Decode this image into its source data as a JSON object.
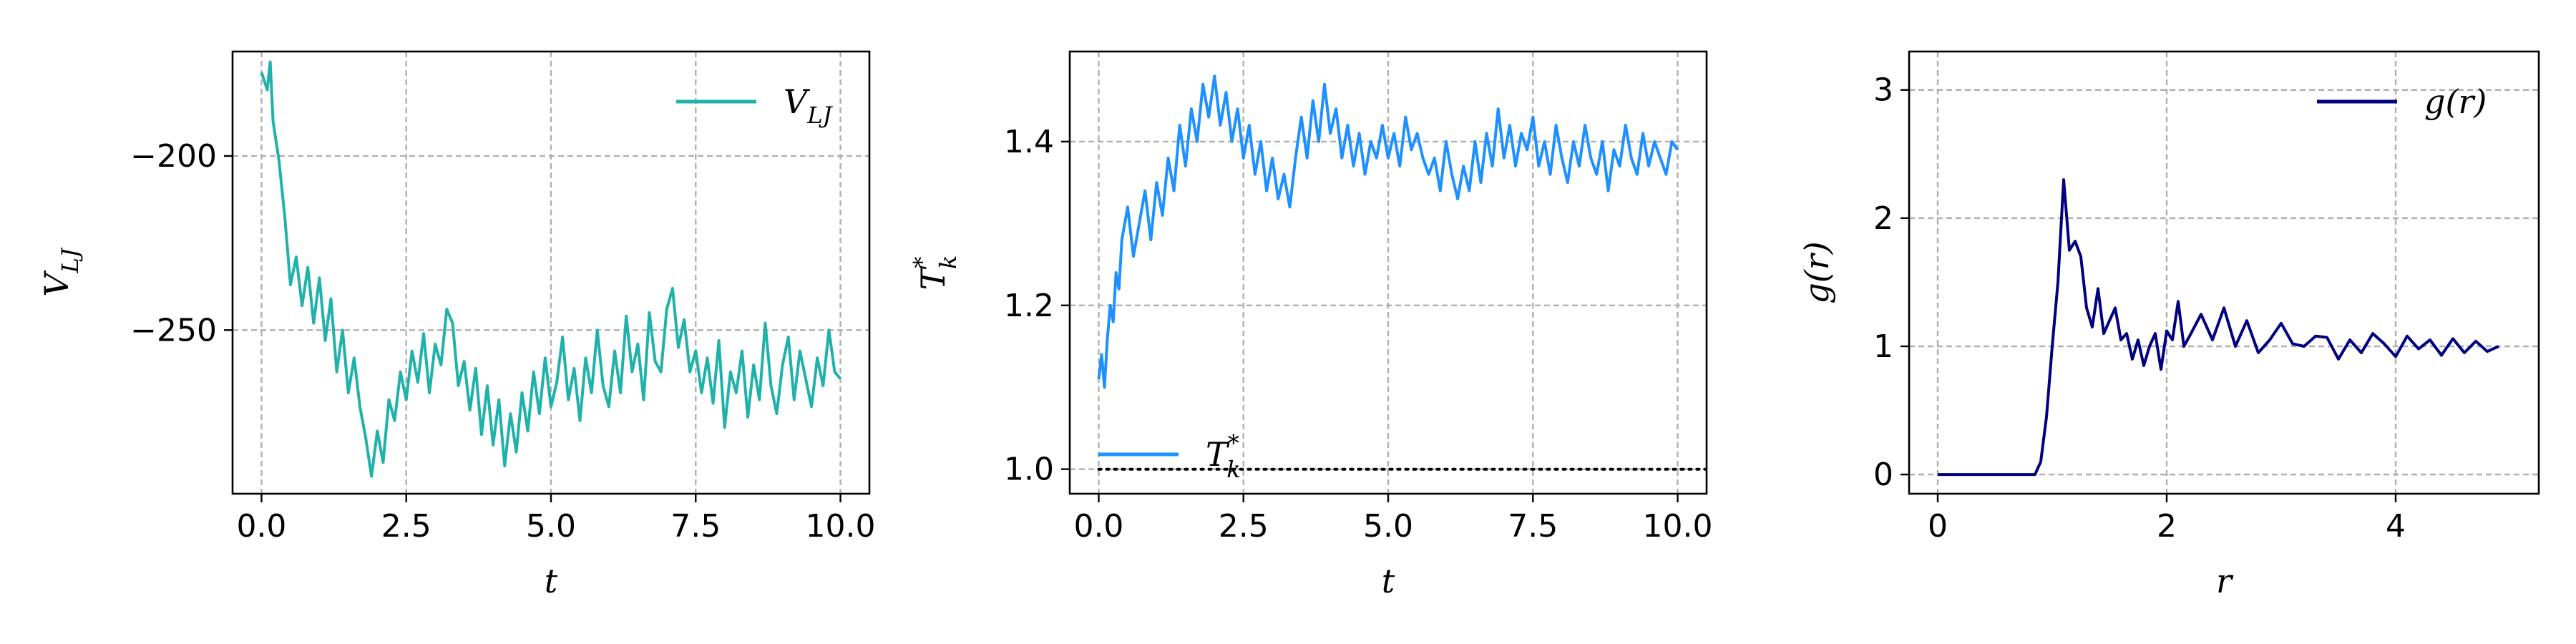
{
  "figure": {
    "chart_data": [
      {
        "type": "line",
        "xlabel": "t",
        "ylabel": "V_LJ",
        "xlim": [
          -0.5,
          10.5
        ],
        "ylim": [
          -297,
          -170
        ],
        "xticks": [
          0.0,
          2.5,
          5.0,
          7.5,
          10.0
        ],
        "xticklabels": [
          "0.0",
          "2.5",
          "5.0",
          "7.5",
          "10.0"
        ],
        "yticks": [
          -200,
          -250
        ],
        "yticklabels": [
          "−200",
          "−250"
        ],
        "grid": true,
        "legend_position": "top-right",
        "series": [
          {
            "name": "V_LJ",
            "color": "#20b2aa",
            "x": [
              0.0,
              0.1,
              0.15,
              0.2,
              0.3,
              0.4,
              0.5,
              0.6,
              0.7,
              0.8,
              0.9,
              1.0,
              1.1,
              1.2,
              1.3,
              1.4,
              1.5,
              1.6,
              1.7,
              1.8,
              1.9,
              2.0,
              2.1,
              2.2,
              2.3,
              2.4,
              2.5,
              2.6,
              2.7,
              2.8,
              2.9,
              3.0,
              3.1,
              3.2,
              3.3,
              3.4,
              3.5,
              3.6,
              3.7,
              3.8,
              3.9,
              4.0,
              4.1,
              4.2,
              4.3,
              4.4,
              4.5,
              4.6,
              4.7,
              4.8,
              4.9,
              5.0,
              5.1,
              5.2,
              5.3,
              5.4,
              5.5,
              5.6,
              5.7,
              5.8,
              5.9,
              6.0,
              6.1,
              6.2,
              6.3,
              6.4,
              6.5,
              6.6,
              6.7,
              6.8,
              6.9,
              7.0,
              7.1,
              7.2,
              7.3,
              7.4,
              7.5,
              7.6,
              7.7,
              7.8,
              7.9,
              8.0,
              8.1,
              8.2,
              8.3,
              8.4,
              8.5,
              8.6,
              8.7,
              8.8,
              8.9,
              9.0,
              9.1,
              9.2,
              9.3,
              9.4,
              9.5,
              9.6,
              9.7,
              9.8,
              9.9,
              10.0
            ],
            "y": [
              -176,
              -181,
              -173,
              -190,
              -201,
              -217,
              -237,
              -229,
              -243,
              -232,
              -248,
              -235,
              -253,
              -241,
              -262,
              -250,
              -268,
              -258,
              -272,
              -281,
              -292,
              -279,
              -288,
              -270,
              -276,
              -262,
              -270,
              -256,
              -265,
              -251,
              -268,
              -254,
              -260,
              -244,
              -248,
              -266,
              -259,
              -273,
              -261,
              -280,
              -266,
              -283,
              -270,
              -289,
              -274,
              -285,
              -268,
              -279,
              -262,
              -274,
              -258,
              -272,
              -265,
              -252,
              -270,
              -261,
              -276,
              -258,
              -268,
              -250,
              -266,
              -272,
              -256,
              -268,
              -246,
              -262,
              -254,
              -270,
              -245,
              -259,
              -262,
              -244,
              -238,
              -255,
              -247,
              -262,
              -256,
              -268,
              -258,
              -271,
              -253,
              -278,
              -262,
              -268,
              -256,
              -275,
              -260,
              -270,
              -248,
              -266,
              -274,
              -260,
              -252,
              -270,
              -256,
              -264,
              -272,
              -258,
              -266,
              -250,
              -262,
              -264
            ]
          }
        ]
      },
      {
        "type": "line",
        "xlabel": "t",
        "ylabel": "T*_k",
        "xlim": [
          -0.5,
          10.5
        ],
        "ylim": [
          0.97,
          1.51
        ],
        "xticks": [
          0.0,
          2.5,
          5.0,
          7.5,
          10.0
        ],
        "xticklabels": [
          "0.0",
          "2.5",
          "5.0",
          "7.5",
          "10.0"
        ],
        "yticks": [
          1.0,
          1.2,
          1.4
        ],
        "yticklabels": [
          "1.0",
          "1.2",
          "1.4"
        ],
        "grid": true,
        "legend_position": "bottom-left",
        "series": [
          {
            "name": "T*_k",
            "color": "#1e90ff",
            "x": [
              0.0,
              0.05,
              0.1,
              0.15,
              0.2,
              0.25,
              0.3,
              0.35,
              0.4,
              0.5,
              0.6,
              0.7,
              0.8,
              0.9,
              1.0,
              1.1,
              1.2,
              1.3,
              1.4,
              1.5,
              1.6,
              1.7,
              1.8,
              1.9,
              2.0,
              2.1,
              2.2,
              2.3,
              2.4,
              2.5,
              2.6,
              2.7,
              2.8,
              2.9,
              3.0,
              3.1,
              3.2,
              3.3,
              3.4,
              3.5,
              3.6,
              3.7,
              3.8,
              3.9,
              4.0,
              4.1,
              4.2,
              4.3,
              4.4,
              4.5,
              4.6,
              4.7,
              4.8,
              4.9,
              5.0,
              5.1,
              5.2,
              5.3,
              5.4,
              5.5,
              5.6,
              5.7,
              5.8,
              5.9,
              6.0,
              6.1,
              6.2,
              6.3,
              6.4,
              6.5,
              6.6,
              6.7,
              6.8,
              6.9,
              7.0,
              7.1,
              7.2,
              7.3,
              7.4,
              7.5,
              7.6,
              7.7,
              7.8,
              7.9,
              8.0,
              8.1,
              8.2,
              8.3,
              8.4,
              8.5,
              8.6,
              8.7,
              8.8,
              8.9,
              9.0,
              9.1,
              9.2,
              9.3,
              9.4,
              9.5,
              9.6,
              9.7,
              9.8,
              9.9,
              10.0
            ],
            "y": [
              1.11,
              1.14,
              1.1,
              1.16,
              1.2,
              1.18,
              1.24,
              1.22,
              1.28,
              1.32,
              1.26,
              1.3,
              1.34,
              1.28,
              1.35,
              1.31,
              1.38,
              1.34,
              1.42,
              1.37,
              1.44,
              1.4,
              1.47,
              1.43,
              1.48,
              1.42,
              1.46,
              1.4,
              1.44,
              1.38,
              1.42,
              1.36,
              1.4,
              1.34,
              1.38,
              1.33,
              1.36,
              1.32,
              1.38,
              1.43,
              1.38,
              1.45,
              1.4,
              1.47,
              1.41,
              1.44,
              1.38,
              1.42,
              1.37,
              1.41,
              1.36,
              1.4,
              1.38,
              1.42,
              1.38,
              1.41,
              1.37,
              1.43,
              1.39,
              1.41,
              1.38,
              1.36,
              1.38,
              1.34,
              1.4,
              1.36,
              1.33,
              1.37,
              1.34,
              1.4,
              1.35,
              1.41,
              1.37,
              1.44,
              1.38,
              1.42,
              1.37,
              1.41,
              1.39,
              1.43,
              1.37,
              1.4,
              1.36,
              1.42,
              1.38,
              1.35,
              1.4,
              1.37,
              1.42,
              1.38,
              1.36,
              1.4,
              1.34,
              1.39,
              1.37,
              1.42,
              1.38,
              1.36,
              1.41,
              1.37,
              1.4,
              1.38,
              1.36,
              1.4,
              1.39
            ]
          },
          {
            "name": "",
            "color": "#000000",
            "style": "dotted",
            "x": [
              0.0,
              10.5
            ],
            "y": [
              1.0,
              1.0
            ]
          }
        ]
      },
      {
        "type": "line",
        "xlabel": "r",
        "ylabel": "g(r)",
        "xlim": [
          -0.25,
          5.25
        ],
        "ylim": [
          -0.15,
          3.3
        ],
        "xticks": [
          0,
          2,
          4
        ],
        "xticklabels": [
          "0",
          "2",
          "4"
        ],
        "yticks": [
          0,
          1,
          2,
          3
        ],
        "yticklabels": [
          "0",
          "1",
          "2",
          "3"
        ],
        "grid": true,
        "legend_position": "top-right",
        "series": [
          {
            "name": "g(r)",
            "color": "#000080",
            "x": [
              0.0,
              0.2,
              0.4,
              0.6,
              0.8,
              0.85,
              0.9,
              0.95,
              1.0,
              1.05,
              1.1,
              1.15,
              1.2,
              1.25,
              1.3,
              1.35,
              1.4,
              1.45,
              1.5,
              1.55,
              1.6,
              1.65,
              1.7,
              1.75,
              1.8,
              1.85,
              1.9,
              1.95,
              2.0,
              2.05,
              2.1,
              2.15,
              2.2,
              2.3,
              2.4,
              2.5,
              2.6,
              2.7,
              2.8,
              2.9,
              3.0,
              3.1,
              3.2,
              3.3,
              3.4,
              3.5,
              3.6,
              3.7,
              3.8,
              3.9,
              4.0,
              4.1,
              4.2,
              4.3,
              4.4,
              4.5,
              4.6,
              4.7,
              4.8,
              4.9
            ],
            "y": [
              0.0,
              0.0,
              0.0,
              0.0,
              0.0,
              0.0,
              0.1,
              0.45,
              1.0,
              1.5,
              2.3,
              1.75,
              1.82,
              1.7,
              1.3,
              1.15,
              1.45,
              1.1,
              1.2,
              1.3,
              1.05,
              1.1,
              0.9,
              1.05,
              0.85,
              1.0,
              1.1,
              0.82,
              1.12,
              1.05,
              1.35,
              1.0,
              1.08,
              1.25,
              1.05,
              1.3,
              1.0,
              1.2,
              0.95,
              1.05,
              1.18,
              1.02,
              1.0,
              1.08,
              1.07,
              0.9,
              1.05,
              0.95,
              1.1,
              1.02,
              0.92,
              1.08,
              0.98,
              1.05,
              0.93,
              1.06,
              0.95,
              1.04,
              0.96,
              1.0
            ]
          }
        ]
      }
    ]
  }
}
